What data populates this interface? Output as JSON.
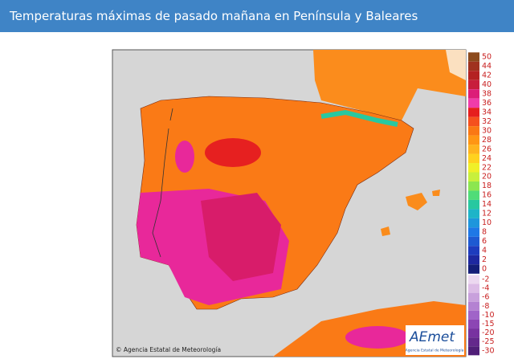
{
  "header": {
    "title": "Temperaturas máximas de pasado mañana en Península y Baleares"
  },
  "legend": [
    {
      "value": 50,
      "color": "#8c4a1c"
    },
    {
      "value": 44,
      "color": "#a0321e"
    },
    {
      "value": 42,
      "color": "#b42222"
    },
    {
      "value": 40,
      "color": "#c81e3c"
    },
    {
      "value": 38,
      "color": "#dc1e78"
    },
    {
      "value": 36,
      "color": "#f03caa"
    },
    {
      "value": 34,
      "color": "#e61e1e"
    },
    {
      "value": 32,
      "color": "#f5501e"
    },
    {
      "value": 30,
      "color": "#fa7814"
    },
    {
      "value": 28,
      "color": "#ff9614"
    },
    {
      "value": 26,
      "color": "#ffb41e"
    },
    {
      "value": 24,
      "color": "#ffd21e"
    },
    {
      "value": 22,
      "color": "#f0f028"
    },
    {
      "value": 20,
      "color": "#c8f03c"
    },
    {
      "value": 18,
      "color": "#8ce650"
    },
    {
      "value": 16,
      "color": "#50dc78"
    },
    {
      "value": 14,
      "color": "#28c8a0"
    },
    {
      "value": 12,
      "color": "#1eb4c8"
    },
    {
      "value": 10,
      "color": "#1e96dc"
    },
    {
      "value": 8,
      "color": "#1e78e6"
    },
    {
      "value": 6,
      "color": "#1e5ad2"
    },
    {
      "value": 4,
      "color": "#1e3cbe"
    },
    {
      "value": 2,
      "color": "#1e28a0"
    },
    {
      "value": 0,
      "color": "#141e78"
    }
  ],
  "legend_negative": [
    {
      "value": -2,
      "color": "#ecd8f0"
    },
    {
      "value": -4,
      "color": "#dcbce6"
    },
    {
      "value": -6,
      "color": "#c8a0dc"
    },
    {
      "value": -8,
      "color": "#b482d2"
    },
    {
      "value": -10,
      "color": "#a064c8"
    },
    {
      "value": -15,
      "color": "#8c46b4"
    },
    {
      "value": -20,
      "color": "#7832a0"
    },
    {
      "value": -25,
      "color": "#64288c"
    },
    {
      "value": -30,
      "color": "#501e78"
    }
  ],
  "footer": {
    "copyright": "© Agencia Estatal de Meteorología",
    "logo": "AEmet",
    "logo_subtitle": "Agencia Estatal de Meteorología"
  }
}
